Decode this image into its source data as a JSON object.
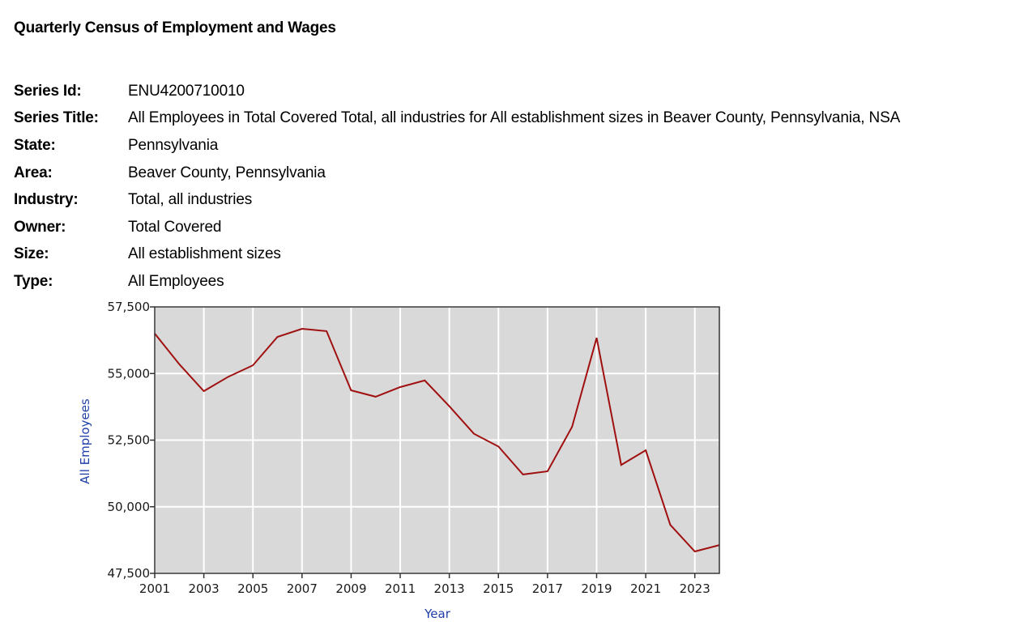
{
  "page": {
    "title": "Quarterly Census of Employment and Wages"
  },
  "series_info": [
    {
      "label": "Series Id:",
      "value": "ENU4200710010"
    },
    {
      "label": "Series Title:",
      "value": "All Employees in Total Covered Total, all industries for All establishment sizes in Beaver County, Pennsylvania, NSA"
    },
    {
      "label": "State:",
      "value": "Pennsylvania"
    },
    {
      "label": "Area:",
      "value": "Beaver County, Pennsylvania"
    },
    {
      "label": "Industry:",
      "value": "Total, all industries"
    },
    {
      "label": "Owner:",
      "value": "Total Covered"
    },
    {
      "label": "Size:",
      "value": "All establishment sizes"
    },
    {
      "label": "Type:",
      "value": "All Employees"
    }
  ],
  "colors": {
    "line": "#a01010",
    "plot_bg": "#d9d9d9",
    "grid": "#ffffff",
    "axis_title": "#2040a8"
  },
  "chart_data": {
    "type": "line",
    "title": "",
    "xlabel": "Year",
    "ylabel": "All Employees",
    "xlim": [
      2001,
      2024
    ],
    "ylim": [
      47500,
      57500
    ],
    "grid": true,
    "legend": null,
    "x_ticks": [
      "2001",
      "2003",
      "2005",
      "2007",
      "2009",
      "2011",
      "2013",
      "2015",
      "2017",
      "2019",
      "2021",
      "2023"
    ],
    "y_ticks": [
      "47,500",
      "50,000",
      "52,500",
      "55,000",
      "57,500"
    ],
    "series": [
      {
        "name": "All Employees",
        "x": [
          2001,
          2002,
          2003,
          2004,
          2005,
          2006,
          2007,
          2008,
          2009,
          2010,
          2011,
          2012,
          2013,
          2014,
          2015,
          2016,
          2017,
          2018,
          2019,
          2020,
          2021,
          2022,
          2023,
          2024
        ],
        "values": [
          56500,
          55350,
          54340,
          54880,
          55310,
          56375,
          56680,
          56590,
          54370,
          54130,
          54490,
          54740,
          53770,
          52740,
          52260,
          51210,
          51330,
          53000,
          56340,
          51570,
          52120,
          49320,
          48320,
          48560
        ]
      }
    ]
  }
}
